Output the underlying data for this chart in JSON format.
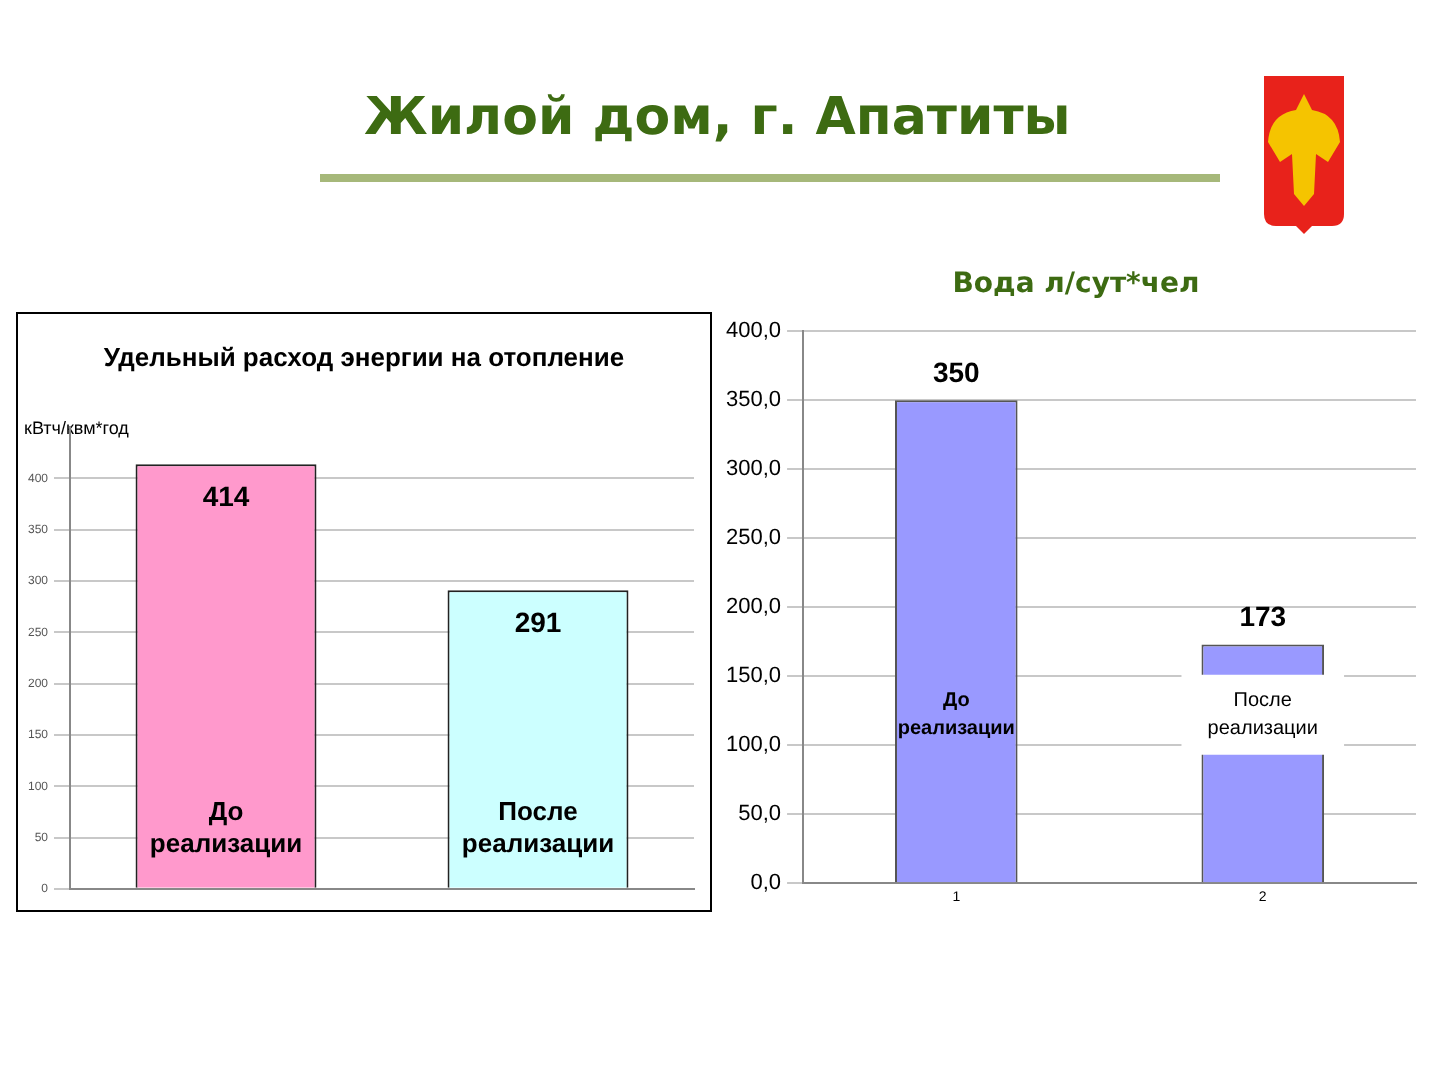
{
  "chart_data": [
    {
      "type": "other",
      "title": "Жилой дом, г. Апатиты"
    },
    {
      "type": "bar",
      "title": "Удельный расход энергии на отопление",
      "ylabel": "кВтч/квм*год",
      "categories": [
        "До реализации",
        "После реализации"
      ],
      "values": [
        414,
        291
      ],
      "colors": [
        "#ff99cc",
        "#ccffff"
      ],
      "ylim": [
        0,
        450
      ],
      "yticks": [
        0,
        50,
        100,
        150,
        200,
        250,
        300,
        350,
        400
      ],
      "grid": "y",
      "data_labels": true
    },
    {
      "type": "bar",
      "title": "Вода л/сут*чел",
      "categories": [
        "1",
        "2"
      ],
      "values": [
        350,
        173
      ],
      "color": "#9999ff",
      "ylim": [
        0,
        400
      ],
      "yticks": [
        {
          "value": 0,
          "label": "0,0"
        },
        {
          "value": 50,
          "label": "50,0"
        },
        {
          "value": 100,
          "label": "100,0"
        },
        {
          "value": 150,
          "label": "150,0"
        },
        {
          "value": 200,
          "label": "200,0"
        },
        {
          "value": 250,
          "label": "250,0"
        },
        {
          "value": 300,
          "label": "300,0"
        },
        {
          "value": 350,
          "label": "350,0"
        },
        {
          "value": 400,
          "label": "400,0"
        }
      ],
      "grid": "y",
      "data_labels": true,
      "annotations": [
        "До реализации",
        "После реализации"
      ]
    }
  ]
}
